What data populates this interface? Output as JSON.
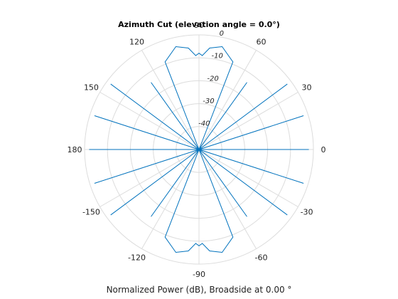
{
  "chart_data": {
    "type": "polar-line",
    "title": "Azimuth Cut (elevation angle = 0.0°)",
    "xlabel": "Normalized Power (dB), Broadside at 0.00 °",
    "angle_ticks": [
      0,
      30,
      60,
      90,
      120,
      150,
      180,
      -150,
      -120,
      -90,
      -60,
      -30
    ],
    "angle_tick_labels": [
      "0",
      "30",
      "60",
      "90",
      "120",
      "150",
      "180",
      "-150",
      "-120",
      "-90",
      "-60",
      "-30"
    ],
    "radial_ticks": [
      0,
      -10,
      -20,
      -30,
      -40
    ],
    "radial_tick_labels": [
      "0",
      "-10",
      "-20",
      "-30",
      "-40"
    ],
    "radial_range_db": [
      -50,
      0
    ],
    "grid": true,
    "color": "#0072bd",
    "series": [
      {
        "azimuth_deg": [
          0,
          8.4,
          17.9,
          26.8,
          36.5,
          48.1,
          54.4,
          56.9,
          58.8,
          59.0,
          60.0,
          61.0,
          63.3,
          68.8,
          77.3,
          84.0,
          88.0,
          90.0,
          92.0,
          96.0,
          102.7,
          111.2,
          116.7,
          119.0,
          120.0,
          121.0,
          121.2,
          123.1,
          125.6,
          131.9,
          143.5,
          153.2,
          162.1,
          171.6,
          180,
          188.4,
          197.9,
          206.8,
          216.5,
          228.1,
          234.4,
          236.9,
          238.8,
          239.0,
          240.0,
          241.0,
          243.3,
          248.8,
          257.3,
          264.0,
          268.0,
          270.0,
          272.0,
          276.0,
          282.7,
          291.2,
          296.7,
          299.0,
          300.0,
          301.0,
          301.2,
          303.1,
          305.6,
          311.9,
          323.5,
          333.2,
          342.1,
          351.6,
          360
        ],
        "power_db": [
          -2,
          -50,
          -2,
          -50,
          -2,
          -50,
          -14,
          -50,
          -50,
          -50,
          -50,
          -50,
          -50,
          -9,
          -4,
          -5.5,
          -9,
          -8,
          -9,
          -5.5,
          -4,
          -9,
          -50,
          -50,
          -50,
          -50,
          -50,
          -50,
          -14,
          -50,
          -2,
          -50,
          -2,
          -50,
          -2,
          -50,
          -2,
          -50,
          -2,
          -50,
          -14,
          -50,
          -50,
          -50,
          -50,
          -50,
          -50,
          -9,
          -4,
          -5.5,
          -9,
          -8,
          -9,
          -5.5,
          -4,
          -9,
          -50,
          -50,
          -50,
          -50,
          -50,
          -50,
          -14,
          -50,
          -2,
          -50,
          -2,
          -50,
          -2
        ]
      }
    ]
  }
}
